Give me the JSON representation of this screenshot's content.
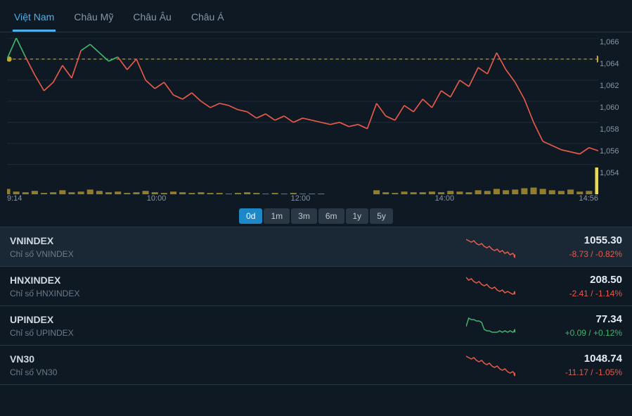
{
  "tabs": [
    {
      "label": "Việt Nam",
      "active": true
    },
    {
      "label": "Châu Mỹ",
      "active": false
    },
    {
      "label": "Châu Âu",
      "active": false
    },
    {
      "label": "Châu Á",
      "active": false
    }
  ],
  "chart": {
    "type": "line-with-volume",
    "background_color": "#0f1924",
    "grid_color": "#1c2a38",
    "reference_line_color": "#c9a82f",
    "reference_value": 1064,
    "up_color": "#3fb66a",
    "down_color": "#e65a4a",
    "volume_color": "#c9a82f",
    "last_bar_color": "#e8d858",
    "ylim": [
      1054,
      1066
    ],
    "ytick_step": 2,
    "y_ticks": [
      "1,066",
      "1,064",
      "1,062",
      "1,060",
      "1,058",
      "1,056",
      "1,054"
    ],
    "x_ticks": [
      "9:14",
      "10:00",
      "12:00",
      "14:00",
      "14:56"
    ],
    "price_series": [
      1064.0,
      1066.0,
      1064.2,
      1062.5,
      1061.0,
      1061.8,
      1063.4,
      1062.2,
      1064.8,
      1065.4,
      1064.6,
      1063.8,
      1064.2,
      1063.0,
      1064.0,
      1062.0,
      1061.2,
      1061.8,
      1060.6,
      1060.2,
      1060.8,
      1060.0,
      1059.4,
      1059.8,
      1059.6,
      1059.2,
      1059.0,
      1058.4,
      1058.8,
      1058.2,
      1058.6,
      1058.0,
      1058.4,
      1058.2,
      1058.0,
      1057.8,
      1058.0,
      1057.6,
      1057.8,
      1057.4,
      1059.8,
      1058.6,
      1058.2,
      1059.6,
      1059.0,
      1060.2,
      1059.4,
      1061.0,
      1060.4,
      1062.0,
      1061.4,
      1063.2,
      1062.6,
      1064.6,
      1063.0,
      1061.8,
      1060.2,
      1058.0,
      1056.2,
      1055.8,
      1055.4,
      1055.2,
      1055.0,
      1055.6,
      1055.3
    ],
    "volume_series": [
      8,
      4,
      3,
      5,
      2,
      3,
      6,
      3,
      4,
      7,
      5,
      3,
      4,
      2,
      3,
      5,
      3,
      2,
      4,
      3,
      2,
      3,
      2,
      2,
      1,
      2,
      3,
      2,
      1,
      2,
      1,
      2,
      1,
      1,
      1,
      0,
      0,
      0,
      0,
      0,
      6,
      3,
      2,
      4,
      3,
      3,
      4,
      3,
      5,
      4,
      3,
      6,
      5,
      8,
      6,
      7,
      9,
      10,
      8,
      6,
      5,
      7,
      4,
      5,
      40
    ],
    "volume_max": 40
  },
  "ranges": [
    {
      "label": "0d",
      "active": true
    },
    {
      "label": "1m",
      "active": false
    },
    {
      "label": "3m",
      "active": false
    },
    {
      "label": "6m",
      "active": false
    },
    {
      "label": "1y",
      "active": false
    },
    {
      "label": "5y",
      "active": false
    }
  ],
  "indices": [
    {
      "name": "VNINDEX",
      "sub": "Chỉ số VNINDEX",
      "value": "1055.30",
      "change": "-8.73 / -0.82%",
      "direction": "neg",
      "selected": true,
      "spark": [
        14,
        13,
        12,
        13,
        11,
        10,
        11,
        9,
        8,
        9,
        7,
        6,
        7,
        5,
        6,
        4,
        5,
        3,
        4,
        2
      ]
    },
    {
      "name": "HNXINDEX",
      "sub": "Chỉ số HNXINDEX",
      "value": "208.50",
      "change": "-2.41 / -1.14%",
      "direction": "neg",
      "selected": false,
      "spark": [
        15,
        13,
        14,
        12,
        11,
        12,
        10,
        9,
        10,
        8,
        7,
        8,
        6,
        5,
        6,
        4,
        5,
        4,
        3,
        4
      ]
    },
    {
      "name": "UPINDEX",
      "sub": "Chỉ số UPINDEX",
      "value": "77.34",
      "change": "+0.09 / +0.12%",
      "direction": "pos",
      "selected": false,
      "spark": [
        8,
        14,
        13,
        13,
        12,
        12,
        11,
        6,
        5,
        5,
        4,
        4,
        4,
        5,
        4,
        5,
        4,
        5,
        4,
        5
      ]
    },
    {
      "name": "VN30",
      "sub": "Chỉ số VN30",
      "value": "1048.74",
      "change": "-11.17 / -1.05%",
      "direction": "neg",
      "selected": false,
      "spark": [
        15,
        14,
        13,
        14,
        12,
        11,
        12,
        10,
        9,
        10,
        8,
        7,
        8,
        6,
        5,
        6,
        4,
        3,
        4,
        2
      ]
    }
  ]
}
